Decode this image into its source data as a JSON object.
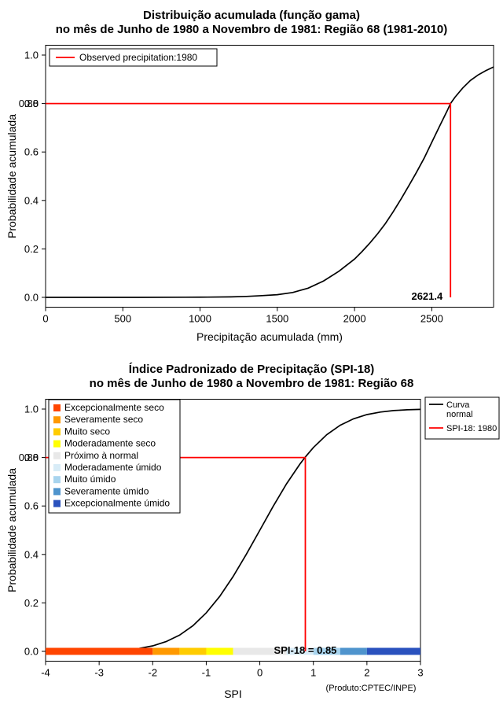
{
  "page": {
    "background": "#ffffff"
  },
  "chart_data": [
    {
      "type": "line",
      "title": "Distribuição acumulada (função gama)",
      "subtitle": "no mês de Junho de 1980 a Novembro de 1981: Região 68 (1981-2010)",
      "xlabel": "Precipitação acumulada (mm)",
      "ylabel": "Probabilidade acumulada",
      "xlim": [
        0,
        2900
      ],
      "ylim": [
        0,
        1
      ],
      "x_ticks": [
        0,
        500,
        1000,
        1500,
        2000,
        2500
      ],
      "y_ticks": [
        0,
        0.2,
        0.4,
        0.6,
        0.8,
        1
      ],
      "grid": false,
      "legend": {
        "position": "top-left",
        "label": "Observed precipitation:1980",
        "color": "#ff0000"
      },
      "curve": {
        "name": "Gamma cumulative distribution",
        "color": "#000000",
        "points": [
          [
            0,
            0
          ],
          [
            300,
            0
          ],
          [
            600,
            0
          ],
          [
            900,
            0.0005
          ],
          [
            1050,
            0.001
          ],
          [
            1200,
            0.002
          ],
          [
            1300,
            0.004
          ],
          [
            1400,
            0.007
          ],
          [
            1500,
            0.011
          ],
          [
            1600,
            0.02
          ],
          [
            1700,
            0.038
          ],
          [
            1800,
            0.068
          ],
          [
            1900,
            0.108
          ],
          [
            2000,
            0.158
          ],
          [
            2050,
            0.19
          ],
          [
            2100,
            0.225
          ],
          [
            2150,
            0.263
          ],
          [
            2200,
            0.305
          ],
          [
            2250,
            0.353
          ],
          [
            2300,
            0.405
          ],
          [
            2350,
            0.459
          ],
          [
            2400,
            0.515
          ],
          [
            2450,
            0.574
          ],
          [
            2500,
            0.64
          ],
          [
            2550,
            0.706
          ],
          [
            2600,
            0.77
          ],
          [
            2621.4,
            0.8
          ],
          [
            2650,
            0.826
          ],
          [
            2700,
            0.864
          ],
          [
            2750,
            0.895
          ],
          [
            2800,
            0.918
          ],
          [
            2850,
            0.936
          ],
          [
            2900,
            0.951
          ]
        ]
      },
      "reference": {
        "color": "#ff0000",
        "x": 2621.4,
        "y": 0.8,
        "x_label": "2621.4",
        "y_label": "0.80"
      }
    },
    {
      "type": "line",
      "title": "Índice Padronizado de Precipitação (SPI-18)",
      "subtitle": "no mês de Junho de 1980 a Novembro de 1981: Região 68",
      "xlabel": "SPI",
      "ylabel": "Probabilidade acumulada",
      "xlim": [
        -4,
        3
      ],
      "ylim": [
        0,
        1
      ],
      "x_ticks": [
        -4,
        -3,
        -2,
        -1,
        0,
        1,
        2,
        3
      ],
      "y_ticks": [
        0,
        0.2,
        0.4,
        0.6,
        0.8,
        1
      ],
      "grid": false,
      "legend_right": {
        "position": "top-right",
        "items": [
          {
            "lines": [
              "Curva",
              "normal"
            ],
            "color": "#000000"
          },
          {
            "lines": [
              "SPI-18: 1980"
            ],
            "color": "#ff0000"
          }
        ]
      },
      "legend_categories": [
        {
          "label": "Excepcionalmente seco",
          "color": "#ff4500"
        },
        {
          "label": "Severamente seco",
          "color": "#ff9900"
        },
        {
          "label": "Muito seco",
          "color": "#ffcc00"
        },
        {
          "label": "Moderadamente seco",
          "color": "#ffff00"
        },
        {
          "label": "Próximo à normal",
          "color": "#e8e8e8"
        },
        {
          "label": "Moderadamente úmido",
          "color": "#d8ecf7"
        },
        {
          "label": "Muito úmido",
          "color": "#a8d4ee"
        },
        {
          "label": "Severamente úmido",
          "color": "#4f94cd"
        },
        {
          "label": "Excepcionalmente úmido",
          "color": "#2a52be"
        }
      ],
      "color_bar": {
        "segments": [
          {
            "from": -4,
            "to": -2,
            "color": "#ff4500"
          },
          {
            "from": -2,
            "to": -1.5,
            "color": "#ff9900"
          },
          {
            "from": -1.5,
            "to": -1,
            "color": "#ffcc00"
          },
          {
            "from": -1,
            "to": -0.5,
            "color": "#ffff00"
          },
          {
            "from": -0.5,
            "to": 0.5,
            "color": "#e8e8e8"
          },
          {
            "from": 0.5,
            "to": 1,
            "color": "#d8ecf7"
          },
          {
            "from": 1,
            "to": 1.5,
            "color": "#a8d4ee"
          },
          {
            "from": 1.5,
            "to": 2,
            "color": "#4f94cd"
          },
          {
            "from": 2,
            "to": 3,
            "color": "#2a52be"
          }
        ]
      },
      "curve": {
        "name": "Normal cumulative distribution",
        "color": "#000000",
        "points": [
          [
            -4,
            0.0
          ],
          [
            -3.5,
            0.0002
          ],
          [
            -3,
            0.0013
          ],
          [
            -2.75,
            0.003
          ],
          [
            -2.5,
            0.0062
          ],
          [
            -2.25,
            0.0122
          ],
          [
            -2,
            0.0228
          ],
          [
            -1.75,
            0.0401
          ],
          [
            -1.5,
            0.0668
          ],
          [
            -1.25,
            0.1056
          ],
          [
            -1,
            0.1587
          ],
          [
            -0.75,
            0.2266
          ],
          [
            -0.5,
            0.3085
          ],
          [
            -0.25,
            0.4013
          ],
          [
            0,
            0.5
          ],
          [
            0.25,
            0.5987
          ],
          [
            0.5,
            0.6915
          ],
          [
            0.75,
            0.7734
          ],
          [
            0.85,
            0.8023
          ],
          [
            1,
            0.8413
          ],
          [
            1.25,
            0.8944
          ],
          [
            1.5,
            0.9332
          ],
          [
            1.75,
            0.9599
          ],
          [
            2,
            0.9772
          ],
          [
            2.25,
            0.9878
          ],
          [
            2.5,
            0.9938
          ],
          [
            2.75,
            0.997
          ],
          [
            3,
            0.9987
          ]
        ]
      },
      "reference": {
        "color": "#ff0000",
        "x": 0.85,
        "y": 0.8,
        "label": "SPI-18 = 0.85",
        "y_label": "0.80"
      },
      "footnote": "(Produto:CPTEC/INPE)"
    }
  ]
}
